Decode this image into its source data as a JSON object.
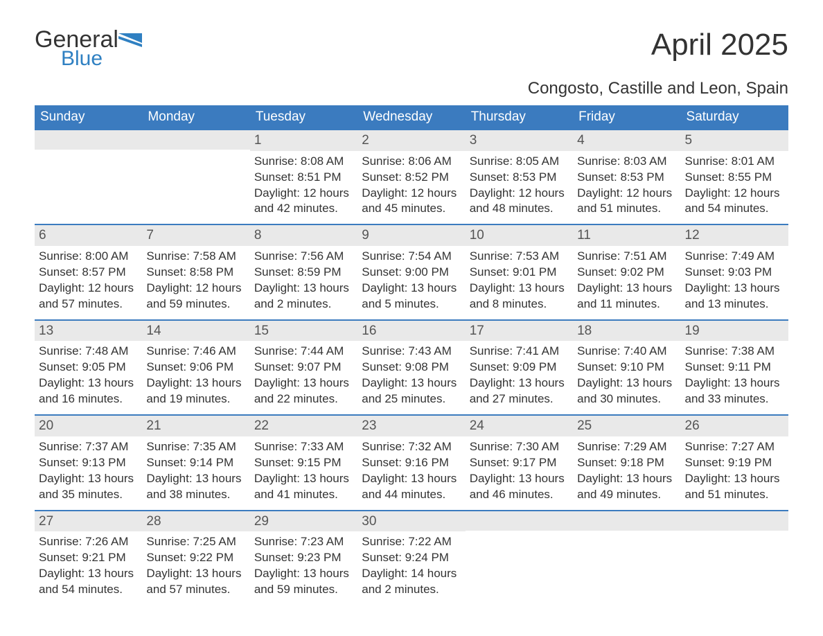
{
  "logo": {
    "word1": "General",
    "word2": "Blue",
    "accent_color": "#2f80c2"
  },
  "title": "April 2025",
  "location": "Congosto, Castille and Leon, Spain",
  "weekdays": [
    "Sunday",
    "Monday",
    "Tuesday",
    "Wednesday",
    "Thursday",
    "Friday",
    "Saturday"
  ],
  "colors": {
    "header_bg": "#3b7bbf",
    "header_text": "#ffffff",
    "daynum_bg": "#e9e9e9",
    "daynum_text": "#555555",
    "body_text": "#333333",
    "rule": "#3b7bbf"
  },
  "weeks": [
    [
      {
        "empty": true
      },
      {
        "empty": true
      },
      {
        "n": "1",
        "sunrise": "Sunrise: 8:08 AM",
        "sunset": "Sunset: 8:51 PM",
        "d1": "Daylight: 12 hours",
        "d2": "and 42 minutes."
      },
      {
        "n": "2",
        "sunrise": "Sunrise: 8:06 AM",
        "sunset": "Sunset: 8:52 PM",
        "d1": "Daylight: 12 hours",
        "d2": "and 45 minutes."
      },
      {
        "n": "3",
        "sunrise": "Sunrise: 8:05 AM",
        "sunset": "Sunset: 8:53 PM",
        "d1": "Daylight: 12 hours",
        "d2": "and 48 minutes."
      },
      {
        "n": "4",
        "sunrise": "Sunrise: 8:03 AM",
        "sunset": "Sunset: 8:53 PM",
        "d1": "Daylight: 12 hours",
        "d2": "and 51 minutes."
      },
      {
        "n": "5",
        "sunrise": "Sunrise: 8:01 AM",
        "sunset": "Sunset: 8:55 PM",
        "d1": "Daylight: 12 hours",
        "d2": "and 54 minutes."
      }
    ],
    [
      {
        "n": "6",
        "sunrise": "Sunrise: 8:00 AM",
        "sunset": "Sunset: 8:57 PM",
        "d1": "Daylight: 12 hours",
        "d2": "and 57 minutes."
      },
      {
        "n": "7",
        "sunrise": "Sunrise: 7:58 AM",
        "sunset": "Sunset: 8:58 PM",
        "d1": "Daylight: 12 hours",
        "d2": "and 59 minutes."
      },
      {
        "n": "8",
        "sunrise": "Sunrise: 7:56 AM",
        "sunset": "Sunset: 8:59 PM",
        "d1": "Daylight: 13 hours",
        "d2": "and 2 minutes."
      },
      {
        "n": "9",
        "sunrise": "Sunrise: 7:54 AM",
        "sunset": "Sunset: 9:00 PM",
        "d1": "Daylight: 13 hours",
        "d2": "and 5 minutes."
      },
      {
        "n": "10",
        "sunrise": "Sunrise: 7:53 AM",
        "sunset": "Sunset: 9:01 PM",
        "d1": "Daylight: 13 hours",
        "d2": "and 8 minutes."
      },
      {
        "n": "11",
        "sunrise": "Sunrise: 7:51 AM",
        "sunset": "Sunset: 9:02 PM",
        "d1": "Daylight: 13 hours",
        "d2": "and 11 minutes."
      },
      {
        "n": "12",
        "sunrise": "Sunrise: 7:49 AM",
        "sunset": "Sunset: 9:03 PM",
        "d1": "Daylight: 13 hours",
        "d2": "and 13 minutes."
      }
    ],
    [
      {
        "n": "13",
        "sunrise": "Sunrise: 7:48 AM",
        "sunset": "Sunset: 9:05 PM",
        "d1": "Daylight: 13 hours",
        "d2": "and 16 minutes."
      },
      {
        "n": "14",
        "sunrise": "Sunrise: 7:46 AM",
        "sunset": "Sunset: 9:06 PM",
        "d1": "Daylight: 13 hours",
        "d2": "and 19 minutes."
      },
      {
        "n": "15",
        "sunrise": "Sunrise: 7:44 AM",
        "sunset": "Sunset: 9:07 PM",
        "d1": "Daylight: 13 hours",
        "d2": "and 22 minutes."
      },
      {
        "n": "16",
        "sunrise": "Sunrise: 7:43 AM",
        "sunset": "Sunset: 9:08 PM",
        "d1": "Daylight: 13 hours",
        "d2": "and 25 minutes."
      },
      {
        "n": "17",
        "sunrise": "Sunrise: 7:41 AM",
        "sunset": "Sunset: 9:09 PM",
        "d1": "Daylight: 13 hours",
        "d2": "and 27 minutes."
      },
      {
        "n": "18",
        "sunrise": "Sunrise: 7:40 AM",
        "sunset": "Sunset: 9:10 PM",
        "d1": "Daylight: 13 hours",
        "d2": "and 30 minutes."
      },
      {
        "n": "19",
        "sunrise": "Sunrise: 7:38 AM",
        "sunset": "Sunset: 9:11 PM",
        "d1": "Daylight: 13 hours",
        "d2": "and 33 minutes."
      }
    ],
    [
      {
        "n": "20",
        "sunrise": "Sunrise: 7:37 AM",
        "sunset": "Sunset: 9:13 PM",
        "d1": "Daylight: 13 hours",
        "d2": "and 35 minutes."
      },
      {
        "n": "21",
        "sunrise": "Sunrise: 7:35 AM",
        "sunset": "Sunset: 9:14 PM",
        "d1": "Daylight: 13 hours",
        "d2": "and 38 minutes."
      },
      {
        "n": "22",
        "sunrise": "Sunrise: 7:33 AM",
        "sunset": "Sunset: 9:15 PM",
        "d1": "Daylight: 13 hours",
        "d2": "and 41 minutes."
      },
      {
        "n": "23",
        "sunrise": "Sunrise: 7:32 AM",
        "sunset": "Sunset: 9:16 PM",
        "d1": "Daylight: 13 hours",
        "d2": "and 44 minutes."
      },
      {
        "n": "24",
        "sunrise": "Sunrise: 7:30 AM",
        "sunset": "Sunset: 9:17 PM",
        "d1": "Daylight: 13 hours",
        "d2": "and 46 minutes."
      },
      {
        "n": "25",
        "sunrise": "Sunrise: 7:29 AM",
        "sunset": "Sunset: 9:18 PM",
        "d1": "Daylight: 13 hours",
        "d2": "and 49 minutes."
      },
      {
        "n": "26",
        "sunrise": "Sunrise: 7:27 AM",
        "sunset": "Sunset: 9:19 PM",
        "d1": "Daylight: 13 hours",
        "d2": "and 51 minutes."
      }
    ],
    [
      {
        "n": "27",
        "sunrise": "Sunrise: 7:26 AM",
        "sunset": "Sunset: 9:21 PM",
        "d1": "Daylight: 13 hours",
        "d2": "and 54 minutes."
      },
      {
        "n": "28",
        "sunrise": "Sunrise: 7:25 AM",
        "sunset": "Sunset: 9:22 PM",
        "d1": "Daylight: 13 hours",
        "d2": "and 57 minutes."
      },
      {
        "n": "29",
        "sunrise": "Sunrise: 7:23 AM",
        "sunset": "Sunset: 9:23 PM",
        "d1": "Daylight: 13 hours",
        "d2": "and 59 minutes."
      },
      {
        "n": "30",
        "sunrise": "Sunrise: 7:22 AM",
        "sunset": "Sunset: 9:24 PM",
        "d1": "Daylight: 14 hours",
        "d2": "and 2 minutes."
      },
      {
        "empty": true
      },
      {
        "empty": true
      },
      {
        "empty": true
      }
    ]
  ]
}
